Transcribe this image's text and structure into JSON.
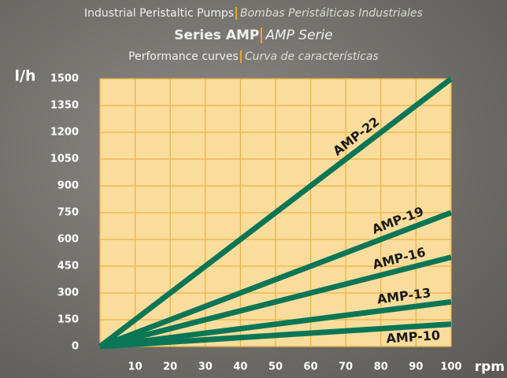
{
  "chart_data": {
    "type": "line",
    "title": "Industrial Peristaltic Pumps",
    "title_alt": "Bombas Peristálticas Industriales",
    "subtitle": "Series AMP",
    "subtitle_alt": "AMP Serie",
    "caption": "Performance curves",
    "caption_alt": "Curva de características",
    "y_label": "l/h",
    "x_label": "rpm",
    "x": [
      0,
      100
    ],
    "series": [
      {
        "name": "AMP-22",
        "color": "#0b7656",
        "values": [
          0,
          1500
        ]
      },
      {
        "name": "AMP-19",
        "color": "#0b7656",
        "values": [
          0,
          750
        ]
      },
      {
        "name": "AMP-16",
        "color": "#0b7656",
        "values": [
          0,
          500
        ]
      },
      {
        "name": "AMP-13",
        "color": "#0b7656",
        "values": [
          0,
          250
        ]
      },
      {
        "name": "AMP-10",
        "color": "#0b7656",
        "values": [
          0,
          125
        ]
      }
    ],
    "xlim": [
      0,
      100
    ],
    "xticks": [
      10,
      20,
      30,
      40,
      50,
      60,
      70,
      80,
      90,
      100
    ],
    "ylim": [
      0,
      1500
    ],
    "yticks": [
      0,
      150,
      300,
      450,
      600,
      750,
      900,
      1050,
      1200,
      1350,
      1500
    ],
    "grid": true
  }
}
